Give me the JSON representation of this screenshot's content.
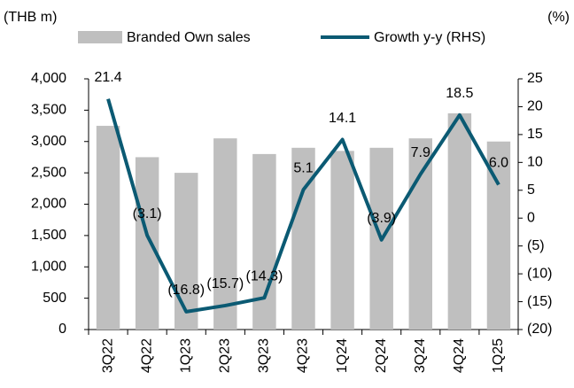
{
  "chart_data": {
    "type": "combo",
    "y_label": "(THB m)",
    "y2_label": "(%)",
    "categories": [
      "3Q22",
      "4Q22",
      "1Q23",
      "2Q23",
      "3Q23",
      "4Q23",
      "1Q24",
      "2Q24",
      "3Q24",
      "4Q24",
      "1Q25"
    ],
    "series": [
      {
        "name": "Branded Own sales",
        "type": "bar",
        "color": "#bfbfbf",
        "values": [
          3250,
          2750,
          2500,
          3050,
          2800,
          2900,
          2850,
          2900,
          3050,
          3450,
          3000
        ]
      },
      {
        "name": "Growth y-y (RHS)",
        "type": "line",
        "axis": "y2",
        "color": "#0b5a73",
        "values": [
          21.4,
          -3.1,
          -16.8,
          -15.7,
          -14.3,
          5.1,
          14.1,
          -3.9,
          7.9,
          18.5,
          6.0
        ],
        "value_labels": [
          "21.4",
          "(3.1)",
          "(16.8)",
          "(15.7)",
          "(14.3)",
          "5.1",
          "14.1",
          "(3.9)",
          "7.9",
          "18.5",
          "6.0"
        ]
      }
    ],
    "ylim": [
      0,
      4000
    ],
    "yticks": [
      0,
      500,
      {
        "value": 1000,
        "label": "1,000"
      },
      {
        "value": 1500,
        "label": "1,500"
      },
      {
        "value": 2000,
        "label": "2,000"
      },
      {
        "value": 2500,
        "label": "2,500"
      },
      {
        "value": 3000,
        "label": "3,000"
      },
      {
        "value": 3500,
        "label": "3,500"
      },
      {
        "value": 4000,
        "label": "4,000"
      }
    ],
    "y2lim": [
      -20,
      25
    ],
    "y2ticks": [
      {
        "value": -20,
        "label": "(20)"
      },
      {
        "value": -15,
        "label": "(15)"
      },
      {
        "value": -10,
        "label": "(10)"
      },
      {
        "value": -5,
        "label": "(5)"
      },
      0,
      5,
      10,
      15,
      20,
      25
    ],
    "grid": false
  }
}
